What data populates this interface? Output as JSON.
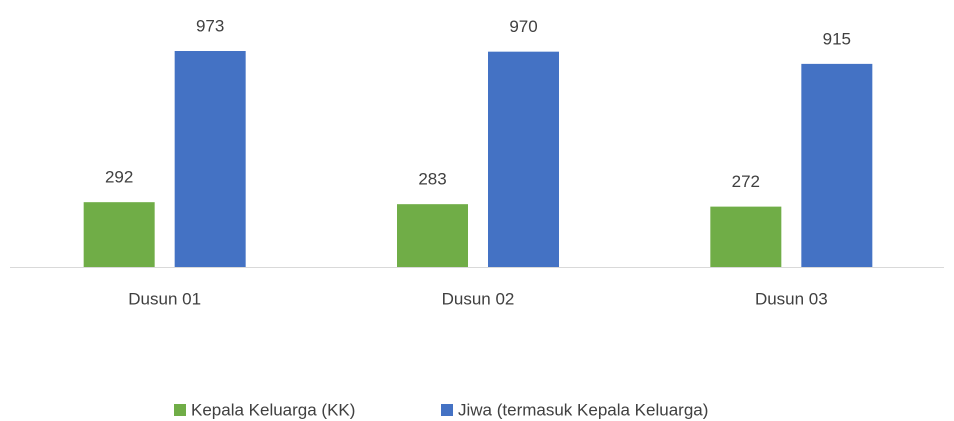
{
  "chart_data": {
    "type": "bar",
    "categories": [
      "Dusun 01",
      "Dusun 02",
      "Dusun 03"
    ],
    "series": [
      {
        "name": "Kepala Keluarga (KK)",
        "color": "#70ad47",
        "values": [
          292,
          283,
          272
        ]
      },
      {
        "name": "Jiwa (termasuk Kepala Keluarga)",
        "color": "#4472c4",
        "values": [
          973,
          970,
          915
        ]
      }
    ],
    "legend": "bottom"
  }
}
